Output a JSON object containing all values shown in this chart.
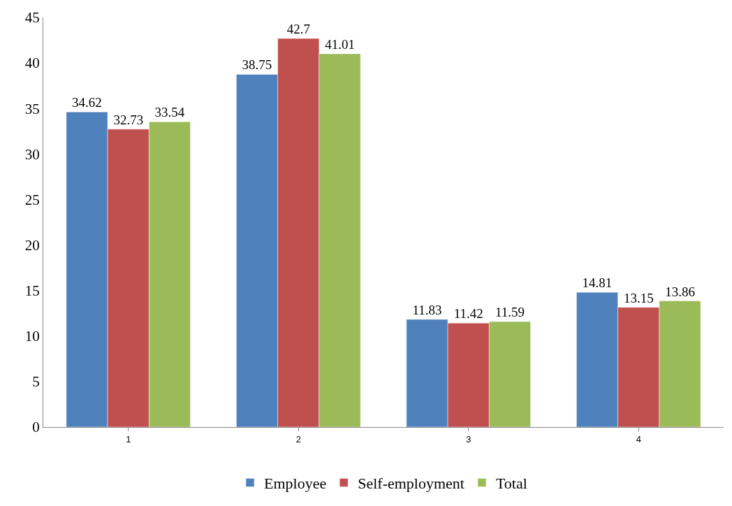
{
  "chart_data": {
    "type": "bar",
    "categories": [
      "1",
      "2",
      "3",
      "4"
    ],
    "series": [
      {
        "name": "Employee",
        "color": "#4f81bd",
        "values": [
          34.62,
          38.75,
          11.83,
          14.81
        ]
      },
      {
        "name": "Self-employment",
        "color": "#c0504d",
        "values": [
          32.73,
          42.7,
          11.42,
          13.15
        ]
      },
      {
        "name": "Total",
        "color": "#9bbb59",
        "values": [
          33.54,
          41.01,
          11.59,
          13.86
        ]
      }
    ],
    "ylim": [
      0,
      45
    ],
    "yticks": [
      0,
      5,
      10,
      15,
      20,
      25,
      30,
      35,
      40,
      45
    ],
    "data_labels": true,
    "legend": "bottom"
  }
}
